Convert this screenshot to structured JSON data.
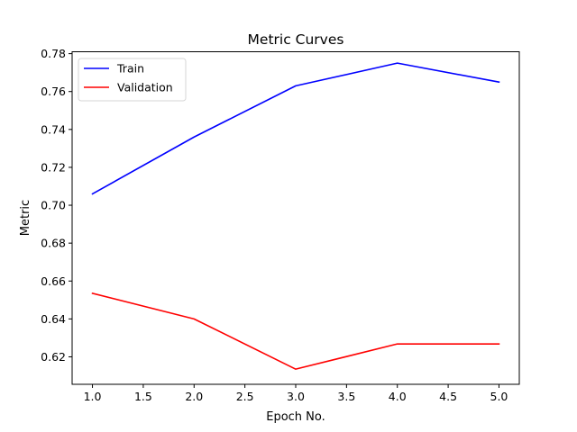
{
  "chart_data": {
    "type": "line",
    "title": "Metric Curves",
    "xlabel": "Epoch No.",
    "ylabel": "Metric",
    "xlim": [
      0.8,
      5.2
    ],
    "ylim": [
      0.6055,
      0.781
    ],
    "x_ticks": [
      "1.0",
      "1.5",
      "2.0",
      "2.5",
      "3.0",
      "3.5",
      "4.0",
      "4.5",
      "5.0"
    ],
    "y_ticks": [
      "0.62",
      "0.64",
      "0.66",
      "0.68",
      "0.70",
      "0.72",
      "0.74",
      "0.76",
      "0.78"
    ],
    "x": [
      1,
      2,
      3,
      4,
      5
    ],
    "series": [
      {
        "name": "Train",
        "color": "#0000ff",
        "values": [
          0.706,
          0.736,
          0.763,
          0.775,
          0.765
        ]
      },
      {
        "name": "Validation",
        "color": "#ff0000",
        "values": [
          0.6535,
          0.64,
          0.6135,
          0.6268,
          0.6268
        ]
      }
    ],
    "grid": false,
    "legend_position": "upper-left"
  }
}
